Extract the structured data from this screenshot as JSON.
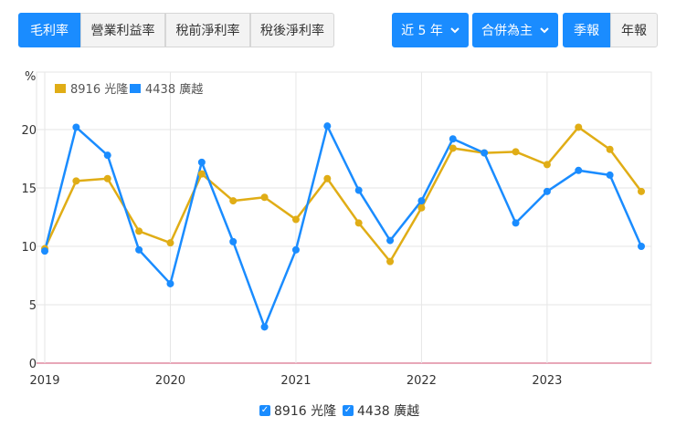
{
  "tabs": [
    {
      "label": "毛利率",
      "active": true
    },
    {
      "label": "營業利益率",
      "active": false
    },
    {
      "label": "稅前淨利率",
      "active": false
    },
    {
      "label": "稅後淨利率",
      "active": false
    }
  ],
  "controls": {
    "period_label": "近 5 年",
    "scope_label": "合併為主",
    "quarterly_label": "季報",
    "annual_label": "年報"
  },
  "legend_bottom": [
    {
      "label": "8916 光隆",
      "checked": true
    },
    {
      "label": "4438 廣越",
      "checked": true
    }
  ],
  "colors": {
    "accent": "#1a8cff",
    "series_gold": "#e0ad16",
    "series_blue": "#1a8cff",
    "grid": "#e6e6e6",
    "baseline": "#e08aa0"
  },
  "chart_data": {
    "type": "line",
    "ylabel": "%",
    "ylim": [
      0,
      20
    ],
    "yticks": [
      0,
      5,
      10,
      15,
      20
    ],
    "xlim": [
      2019,
      2023.75
    ],
    "xticks": [
      "2019",
      "2020",
      "2021",
      "2022",
      "2023"
    ],
    "grid": true,
    "legend_position": "top-left",
    "x": [
      2019.0,
      2019.25,
      2019.5,
      2019.75,
      2020.0,
      2020.25,
      2020.5,
      2020.75,
      2021.0,
      2021.25,
      2021.5,
      2021.75,
      2022.0,
      2022.25,
      2022.5,
      2022.75,
      2023.0,
      2023.25,
      2023.5,
      2023.75
    ],
    "series": [
      {
        "name": "8916 光隆",
        "color": "#e0ad16",
        "values": [
          9.8,
          15.6,
          15.8,
          11.3,
          10.3,
          16.2,
          13.9,
          14.2,
          12.3,
          15.8,
          12.0,
          8.7,
          13.3,
          18.4,
          18.0,
          18.1,
          17.0,
          20.2,
          18.3,
          14.7
        ]
      },
      {
        "name": "4438 廣越",
        "color": "#1a8cff",
        "values": [
          9.6,
          20.2,
          17.8,
          9.7,
          6.8,
          17.2,
          10.4,
          3.1,
          9.7,
          20.3,
          14.8,
          10.5,
          13.9,
          19.2,
          18.0,
          12.0,
          14.7,
          16.5,
          16.1,
          10.0
        ]
      }
    ]
  }
}
